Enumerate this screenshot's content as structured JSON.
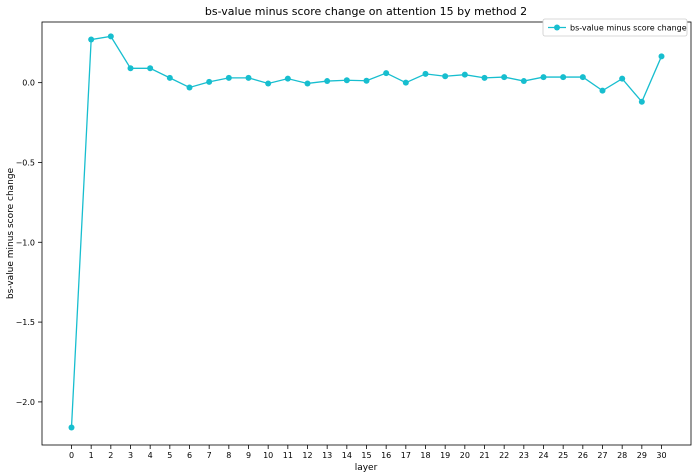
{
  "chart_data": {
    "type": "line",
    "title": "bs-value minus score change on attention 15 by method 2",
    "xlabel": "layer",
    "ylabel": "bs-value minus score change",
    "x": [
      0,
      1,
      2,
      3,
      4,
      5,
      6,
      7,
      8,
      9,
      10,
      11,
      12,
      13,
      14,
      15,
      16,
      17,
      18,
      19,
      20,
      21,
      22,
      23,
      24,
      25,
      26,
      27,
      28,
      29,
      30
    ],
    "xlim": [
      -1.5,
      31.5
    ],
    "ylim": [
      -2.27,
      0.38
    ],
    "yticks": [
      -2.0,
      -1.5,
      -1.0,
      -0.5,
      0.0
    ],
    "ytick_labels": [
      "−2.0",
      "−1.5",
      "−1.0",
      "−0.5",
      "0.0"
    ],
    "grid": false,
    "legend_position": "upper right",
    "series": [
      {
        "name": "bs-value minus score change",
        "color": "#17becf",
        "marker": "circle",
        "values": [
          -2.16,
          0.27,
          0.29,
          0.09,
          0.09,
          0.03,
          -0.03,
          0.005,
          0.03,
          0.03,
          -0.005,
          0.025,
          -0.005,
          0.01,
          0.015,
          0.012,
          0.06,
          0.0,
          0.055,
          0.04,
          0.05,
          0.03,
          0.035,
          0.01,
          0.035,
          0.035,
          0.035,
          -0.05,
          0.025,
          -0.12,
          0.165
        ]
      }
    ]
  }
}
